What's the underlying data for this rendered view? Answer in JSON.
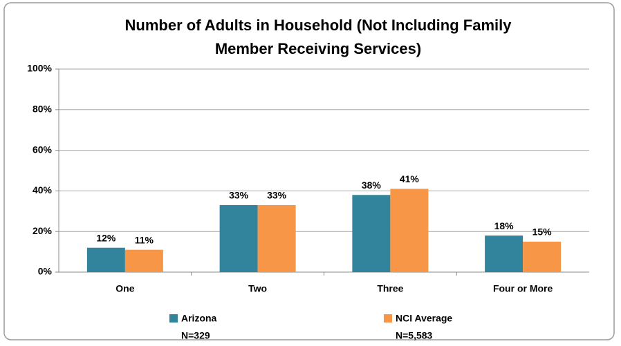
{
  "chart_data": {
    "type": "bar",
    "title": [
      "Number of Adults in Household (Not Including Family",
      "Member Receiving Services)"
    ],
    "categories": [
      "One",
      "Two",
      "Three",
      "Four or More"
    ],
    "series": [
      {
        "name": "Arizona",
        "note": "N=329",
        "color": "#31849b",
        "values": [
          12,
          33,
          38,
          18
        ],
        "value_labels": [
          "12%",
          "33%",
          "38%",
          "18%"
        ]
      },
      {
        "name": "NCI Average",
        "note": "N=5,583",
        "color": "#f79646",
        "values": [
          11,
          33,
          41,
          15
        ],
        "value_labels": [
          "11%",
          "33%",
          "41%",
          "15%"
        ]
      }
    ],
    "ylim": [
      0,
      100
    ],
    "yticks": [
      {
        "value": 0,
        "label": "0%"
      },
      {
        "value": 20,
        "label": "20%"
      },
      {
        "value": 40,
        "label": "40%"
      },
      {
        "value": 60,
        "label": "60%"
      },
      {
        "value": 80,
        "label": "80%"
      },
      {
        "value": 100,
        "label": "100%"
      }
    ],
    "grid": true,
    "legend": "bottom"
  }
}
